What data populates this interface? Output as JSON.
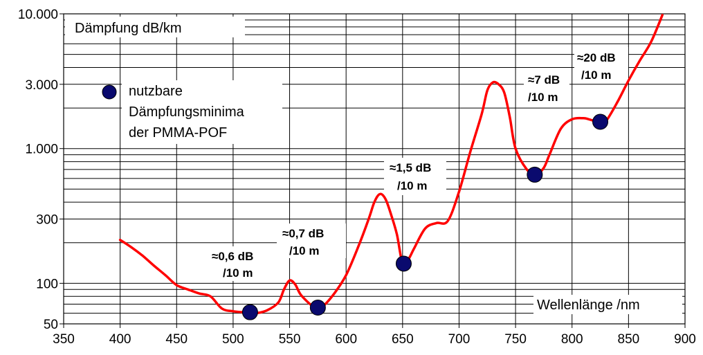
{
  "chart_data": {
    "type": "line",
    "ylabel": "Dämpfung   dB/km",
    "xlabel": "Wellenlänge  /nm",
    "x_ticks": [
      "350",
      "400",
      "450",
      "500",
      "550",
      "600",
      "650",
      "700",
      "750",
      "800",
      "850",
      "900"
    ],
    "y_ticks": [
      {
        "value": 50,
        "label": "50"
      },
      {
        "value": 100,
        "label": "100"
      },
      {
        "value": 300,
        "label": "300"
      },
      {
        "value": 1000,
        "label": "1.000"
      },
      {
        "value": 3000,
        "label": "3.000"
      },
      {
        "value": 10000,
        "label": "10.000"
      }
    ],
    "xlim": [
      350,
      900
    ],
    "ylim": [
      50,
      10000
    ],
    "y_scale": "log",
    "grid": true,
    "series": [
      {
        "color": "#ff0000",
        "x": [
          400,
          410,
          420,
          430,
          440,
          450,
          460,
          470,
          480,
          490,
          500,
          510,
          515,
          520,
          530,
          540,
          545,
          550,
          555,
          560,
          570,
          575,
          580,
          590,
          600,
          610,
          620,
          625,
          630,
          635,
          640,
          645,
          650,
          655,
          660,
          670,
          680,
          690,
          700,
          710,
          720,
          725,
          730,
          735,
          740,
          745,
          750,
          760,
          768,
          775,
          780,
          790,
          800,
          810,
          815,
          820,
          825,
          830,
          840,
          850,
          860,
          870,
          880
        ],
        "y": [
          210,
          185,
          160,
          135,
          115,
          97,
          90,
          84,
          80,
          65,
          62,
          61,
          61,
          60,
          63,
          72,
          90,
          105,
          98,
          82,
          68,
          66,
          68,
          85,
          115,
          180,
          300,
          400,
          460,
          420,
          320,
          230,
          140,
          150,
          180,
          255,
          280,
          290,
          480,
          950,
          1800,
          2700,
          3100,
          3000,
          2600,
          1700,
          1000,
          700,
          640,
          720,
          900,
          1400,
          1650,
          1680,
          1650,
          1600,
          1580,
          1600,
          2200,
          3200,
          4500,
          6200,
          9800
        ]
      }
    ],
    "minima": [
      {
        "x": 515,
        "y": 61
      },
      {
        "x": 575,
        "y": 66
      },
      {
        "x": 651,
        "y": 140
      },
      {
        "x": 767,
        "y": 640
      },
      {
        "x": 825,
        "y": 1580
      }
    ],
    "annotations": [
      {
        "line1": "≈0,6 dB",
        "line2": "/10 m"
      },
      {
        "line1": "≈0,7 dB",
        "line2": "/10 m"
      },
      {
        "line1": "≈1,5 dB",
        "line2": "/10 m"
      },
      {
        "line1": "≈7 dB",
        "line2": "/10 m"
      },
      {
        "line1": "≈20 dB",
        "line2": "/10 m"
      }
    ],
    "legend": {
      "lines": [
        "nutzbare",
        "Dämpfungsminima",
        "der PMMA-POF"
      ],
      "marker_color": "#0a0a6e"
    }
  }
}
